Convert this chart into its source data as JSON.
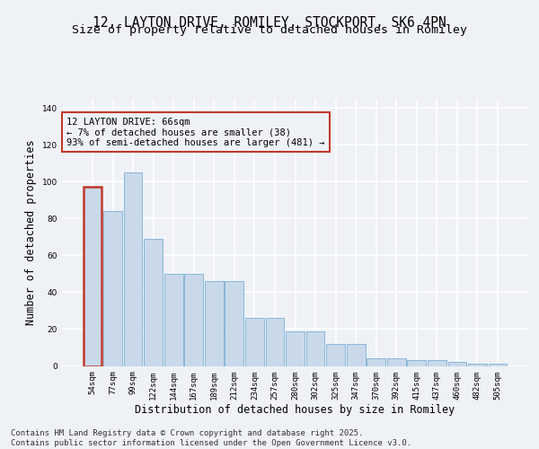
{
  "title_line1": "12, LAYTON DRIVE, ROMILEY, STOCKPORT, SK6 4PN",
  "title_line2": "Size of property relative to detached houses in Romiley",
  "xlabel": "Distribution of detached houses by size in Romiley",
  "ylabel": "Number of detached properties",
  "categories": [
    "54sqm",
    "77sqm",
    "99sqm",
    "122sqm",
    "144sqm",
    "167sqm",
    "189sqm",
    "212sqm",
    "234sqm",
    "257sqm",
    "280sqm",
    "302sqm",
    "325sqm",
    "347sqm",
    "370sqm",
    "392sqm",
    "415sqm",
    "437sqm",
    "460sqm",
    "482sqm",
    "505sqm"
  ],
  "values": [
    97,
    84,
    105,
    69,
    50,
    50,
    46,
    46,
    26,
    26,
    19,
    19,
    12,
    12,
    4,
    4,
    3,
    3,
    2,
    1,
    1
  ],
  "bar_color": "#c9d9ea",
  "bar_edge_color": "#7bafd4",
  "highlight_bar_index": 0,
  "highlight_bar_edge_color": "#c0392b",
  "annotation_text": "12 LAYTON DRIVE: 66sqm\n← 7% of detached houses are smaller (38)\n93% of semi-detached houses are larger (481) →",
  "annotation_box_edge_color": "#c0392b",
  "annotation_fontsize": 7.5,
  "ylim": [
    0,
    145
  ],
  "yticks": [
    0,
    20,
    40,
    60,
    80,
    100,
    120,
    140
  ],
  "background_color": "#eef2f7",
  "grid_color": "#ffffff",
  "footer_text": "Contains HM Land Registry data © Crown copyright and database right 2025.\nContains public sector information licensed under the Open Government Licence v3.0.",
  "title_fontsize": 10.5,
  "subtitle_fontsize": 9.5,
  "axis_label_fontsize": 8.5,
  "tick_fontsize": 6.5,
  "footer_fontsize": 6.5
}
